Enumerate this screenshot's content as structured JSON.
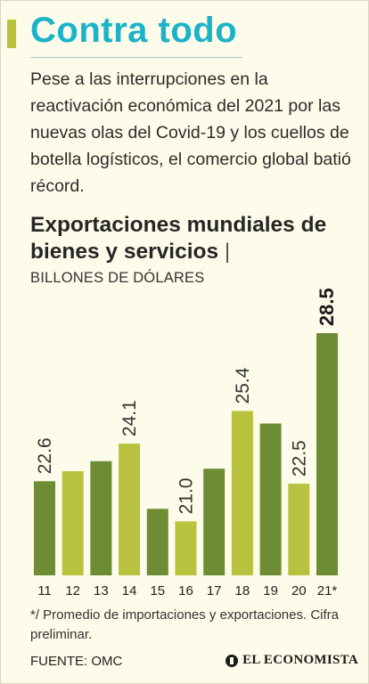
{
  "header": {
    "title": "Contra todo",
    "intro": "Pese a las interrupciones en la reactivación económica del 2021 por las nuevas olas del Covid-19 y los cuellos de botella logísticos, el comercio global batió récord."
  },
  "colors": {
    "accent": "#b8c33a",
    "title": "#1bb3c9",
    "bar_dark": "#6e8c33",
    "bar_light": "#b8c23f"
  },
  "chart_data": {
    "type": "bar",
    "title": "Exportaciones mundiales de bienes y servicios",
    "unit_label": "BILLONES DE DÓLARES",
    "categories": [
      "11",
      "12",
      "13",
      "14",
      "15",
      "16",
      "17",
      "18",
      "19",
      "20",
      "21*"
    ],
    "values": [
      22.6,
      23.0,
      23.4,
      24.1,
      21.5,
      21.0,
      23.1,
      25.4,
      24.9,
      22.5,
      28.5
    ],
    "labels": [
      "22.6",
      "",
      "",
      "24.1",
      "",
      "21.0",
      "",
      "25.4",
      "",
      "22.5",
      "28.5"
    ],
    "ylim": [
      18.85,
      29.0
    ],
    "grid": false,
    "legend": false
  },
  "footer": {
    "note": "*/ Promedio de importaciones y exportaciones. Cifra preliminar.",
    "source": "FUENTE: OMC",
    "brand": "EL ECONOMISTA"
  }
}
